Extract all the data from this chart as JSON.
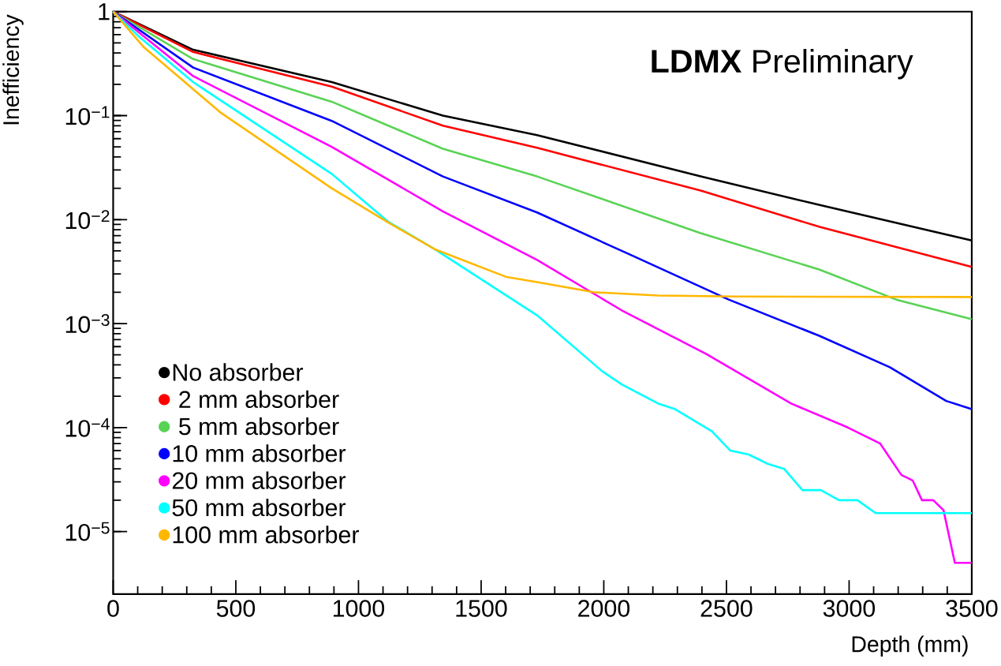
{
  "chart_data": {
    "type": "line",
    "xlabel": "Depth (mm)",
    "ylabel": "Inefficiency",
    "annotations": [
      "**LDMX** Preliminary"
    ],
    "log": "y",
    "legend": "bottom left",
    "xlim": [
      0,
      3500
    ],
    "ylim": [
      2.5e-06,
      1
    ],
    "xticks": [
      0,
      500,
      1000,
      1500,
      2000,
      2500,
      3000,
      3500
    ],
    "yticks": [
      {
        "value": 1e-05,
        "label": "10$^{−5}$"
      },
      {
        "value": 0.0001,
        "label": "10$^{−4}$"
      },
      {
        "value": 0.001,
        "label": "10$^{−3}$"
      },
      {
        "value": 0.01,
        "label": "10$^{−2}$"
      },
      {
        "value": 0.1,
        "label": "10$^{−1}$"
      },
      1
    ],
    "series": [
      {
        "name": "No absorber",
        "color": "#000000",
        "x": [
          0,
          326,
          891,
          1344,
          1728,
          2395,
          2880,
          3500
        ],
        "values": [
          1,
          0.43,
          0.21,
          0.1,
          0.065,
          0.026,
          0.0138,
          0.0063
        ]
      },
      {
        "name": " 2 mm absorber",
        "color": "#ff0000",
        "x": [
          0,
          326,
          891,
          1344,
          1728,
          2395,
          2880,
          3500
        ],
        "values": [
          1,
          0.41,
          0.19,
          0.08,
          0.049,
          0.019,
          0.0085,
          0.0035
        ]
      },
      {
        "name": " 5 mm absorber",
        "color": "#59d354",
        "x": [
          0,
          326,
          891,
          1344,
          1728,
          2395,
          2880,
          3192,
          3500
        ],
        "values": [
          1,
          0.35,
          0.136,
          0.048,
          0.026,
          0.0074,
          0.0033,
          0.0017,
          0.0011
        ]
      },
      {
        "name": "10 mm absorber",
        "color": "#0000ff",
        "x": [
          0,
          326,
          891,
          1344,
          1728,
          2107,
          2509,
          2880,
          3166,
          3396,
          3500
        ],
        "values": [
          1,
          0.29,
          0.089,
          0.026,
          0.0117,
          0.0046,
          0.0017,
          0.00076,
          0.00038,
          0.00018,
          0.00015
        ]
      },
      {
        "name": "20 mm absorber",
        "color": "#ff00ff",
        "x": [
          0,
          326,
          891,
          1344,
          1728,
          2073,
          2418,
          2764,
          2995,
          3127,
          3213,
          3259,
          3297,
          3343,
          3385,
          3431,
          3500
        ],
        "values": [
          1,
          0.24,
          0.05,
          0.012,
          0.0041,
          0.00134,
          0.00051,
          0.00017,
          0.0001,
          7e-05,
          3.5e-05,
          3.1e-05,
          2e-05,
          2e-05,
          1.6e-05,
          5e-06,
          5e-06
        ]
      },
      {
        "name": "50 mm absorber",
        "color": "#00ffff",
        "x": [
          0,
          100,
          326,
          891,
          1117,
          1310,
          1728,
          1992,
          2073,
          2222,
          2291,
          2441,
          2516,
          2591,
          2665,
          2735,
          2810,
          2885,
          2959,
          3034,
          3108,
          3500
        ],
        "values": [
          1,
          0.59,
          0.21,
          0.0275,
          0.0097,
          0.0052,
          0.0012,
          0.00035,
          0.00026,
          0.00017,
          0.00015,
          9.2e-05,
          6e-05,
          5.5e-05,
          4.5e-05,
          4e-05,
          2.5e-05,
          2.5e-05,
          2e-05,
          2e-05,
          1.5e-05,
          1.5e-05
        ]
      },
      {
        "name": "100 mm absorber",
        "color": "#ffb800",
        "x": [
          0,
          123,
          440,
          891,
          1117,
          1310,
          1604,
          1728,
          1959,
          2222,
          2530,
          3500
        ],
        "values": [
          1,
          0.46,
          0.106,
          0.02,
          0.0095,
          0.0052,
          0.0028,
          0.0025,
          0.002,
          0.00186,
          0.00182,
          0.0018
        ]
      }
    ]
  }
}
